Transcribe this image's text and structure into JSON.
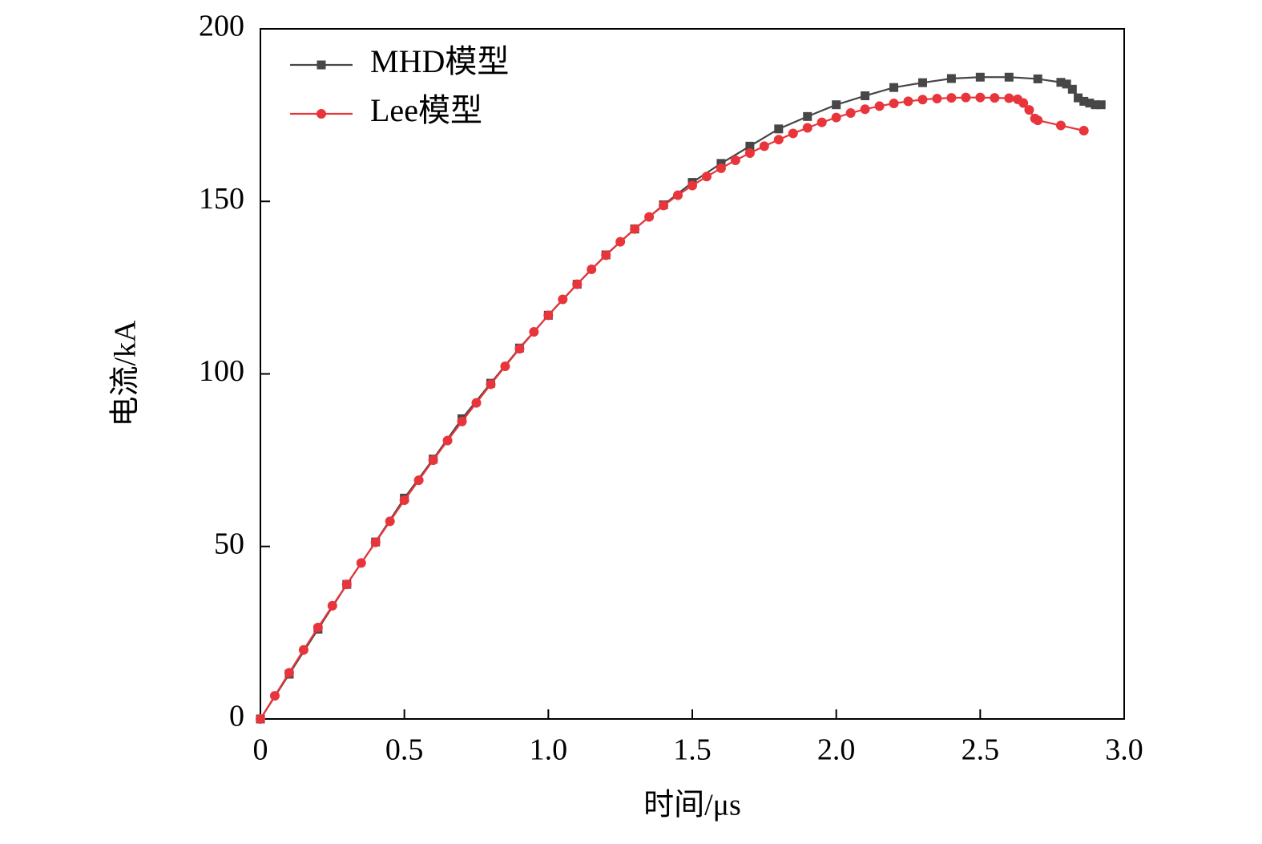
{
  "chart_data": {
    "type": "line",
    "xlabel": "时间/μs",
    "ylabel": "电流/kA",
    "xlim": [
      0,
      3
    ],
    "ylim": [
      0,
      200
    ],
    "xticks": [
      0,
      0.5,
      {
        "value": 1,
        "label": "1.0"
      },
      1.5,
      {
        "value": 2,
        "label": "2.0"
      },
      2.5,
      {
        "value": 3,
        "label": "3.0"
      }
    ],
    "yticks": [
      0,
      50,
      100,
      150,
      200
    ],
    "legend": "upper left",
    "series": [
      {
        "name": "MHD模型",
        "color": "#474747",
        "marker": "square",
        "x": [
          0,
          0.1,
          0.2,
          0.3,
          0.4,
          0.5,
          0.6,
          0.7,
          0.8,
          0.9,
          1.0,
          1.1,
          1.2,
          1.3,
          1.4,
          1.5,
          1.6,
          1.7,
          1.8,
          1.9,
          2.0,
          2.1,
          2.2,
          2.3,
          2.4,
          2.5,
          2.6,
          2.7,
          2.78,
          2.8,
          2.82,
          2.84,
          2.86,
          2.88,
          2.9,
          2.92
        ],
        "values": [
          0,
          13,
          26,
          39,
          51.3,
          64,
          75.3,
          87,
          97.3,
          107.5,
          117,
          126,
          134.5,
          142,
          149,
          155.5,
          161,
          166,
          171,
          174.6,
          178,
          180.6,
          183,
          184.4,
          185.6,
          186,
          186,
          185.5,
          184.5,
          184,
          182.5,
          180,
          179,
          178.5,
          178,
          178
        ]
      },
      {
        "name": "Lee模型",
        "color": "#e8353b",
        "marker": "circle",
        "x": [
          0,
          0.05,
          0.1,
          0.15,
          0.2,
          0.25,
          0.3,
          0.35,
          0.4,
          0.45,
          0.5,
          0.55,
          0.6,
          0.65,
          0.7,
          0.75,
          0.8,
          0.85,
          0.9,
          0.95,
          1.0,
          1.05,
          1.1,
          1.15,
          1.2,
          1.25,
          1.3,
          1.35,
          1.4,
          1.45,
          1.5,
          1.55,
          1.6,
          1.65,
          1.7,
          1.75,
          1.8,
          1.85,
          1.9,
          1.95,
          2.0,
          2.05,
          2.1,
          2.15,
          2.2,
          2.25,
          2.3,
          2.35,
          2.4,
          2.45,
          2.5,
          2.55,
          2.6,
          2.63,
          2.65,
          2.67,
          2.69,
          2.7,
          2.78,
          2.86
        ],
        "values": [
          0,
          6.7,
          13.4,
          20,
          26.5,
          32.8,
          39,
          45.2,
          51.2,
          57.3,
          63.4,
          69.2,
          75,
          80.7,
          86.2,
          91.6,
          97,
          102.2,
          107.3,
          112.2,
          117,
          121.6,
          126,
          130.3,
          134.4,
          138.3,
          142,
          145.5,
          148.8,
          151.8,
          154.6,
          157.2,
          159.6,
          161.9,
          164,
          166,
          167.9,
          169.7,
          171.3,
          172.9,
          174.3,
          175.6,
          176.7,
          177.6,
          178.4,
          179,
          179.5,
          179.8,
          180,
          180.1,
          180.1,
          180,
          179.9,
          179.6,
          178.5,
          176.5,
          174,
          173.5,
          172,
          170.5
        ]
      }
    ]
  }
}
